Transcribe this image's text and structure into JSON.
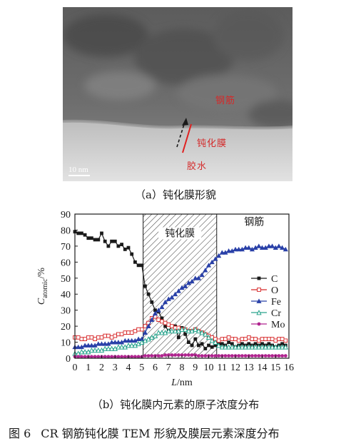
{
  "tem": {
    "labels": {
      "steel": "钢筋",
      "film": "钝化膜",
      "glue": "胶水"
    },
    "scale_bar": "10 nm"
  },
  "captions": {
    "a": "（a）钝化膜形貌",
    "b": "（b）钝化膜内元素的原子浓度分布",
    "figure_number": "图 6",
    "figure_title": "CR 钢筋钝化膜 TEM 形貌及膜层元素深度分布"
  },
  "chart_data": {
    "type": "line",
    "xlabel": "L/nm",
    "ylabel": "C_atomic/%",
    "xlim": [
      0,
      16
    ],
    "ylim": [
      0,
      90
    ],
    "xticks": [
      0,
      1,
      2,
      3,
      4,
      5,
      6,
      7,
      8,
      9,
      10,
      11,
      12,
      13,
      14,
      15,
      16
    ],
    "yticks": [
      0,
      10,
      20,
      30,
      40,
      50,
      60,
      70,
      80,
      90
    ],
    "region_labels": {
      "film": "钝化膜",
      "steel": "钢筋"
    },
    "shaded_region": [
      5.1,
      10.6
    ],
    "legend_position": "right",
    "colors": {
      "C": "#1a1a1a",
      "O": "#d62728",
      "Fe": "#2940a8",
      "Cr": "#2aa58e",
      "Mo": "#b0248f"
    },
    "x": [
      0,
      0.25,
      0.5,
      0.75,
      1,
      1.25,
      1.5,
      1.75,
      2,
      2.25,
      2.5,
      2.75,
      3,
      3.25,
      3.5,
      3.75,
      4,
      4.25,
      4.5,
      4.75,
      5,
      5.25,
      5.5,
      5.75,
      6,
      6.25,
      6.5,
      6.75,
      7,
      7.25,
      7.5,
      7.75,
      8,
      8.25,
      8.5,
      8.75,
      9,
      9.25,
      9.5,
      9.75,
      10,
      10.25,
      10.5,
      10.75,
      11,
      11.25,
      11.5,
      11.75,
      12,
      12.25,
      12.5,
      12.75,
      13,
      13.25,
      13.5,
      13.75,
      14,
      14.25,
      14.5,
      14.75,
      15,
      15.25,
      15.5,
      15.75
    ],
    "series": [
      {
        "name": "C",
        "marker": "square-filled",
        "values": [
          79,
          78,
          78,
          77,
          75,
          75,
          74,
          74,
          78,
          73,
          70,
          73,
          73,
          70,
          71,
          68,
          69,
          65,
          60,
          58,
          58,
          45,
          40,
          35,
          30,
          29,
          25,
          20,
          17,
          20,
          20,
          13,
          19,
          15,
          10,
          8,
          12,
          8,
          9,
          6,
          8,
          7,
          8,
          9,
          9,
          8,
          10,
          9,
          7,
          8,
          9,
          8,
          9,
          8,
          9,
          8,
          9,
          8,
          9,
          8,
          7,
          8,
          9,
          8
        ]
      },
      {
        "name": "O",
        "marker": "square-open",
        "values": [
          13,
          13,
          12,
          12,
          13,
          13,
          12,
          13,
          13,
          14,
          14,
          13,
          14,
          15,
          15,
          16,
          16,
          16,
          17,
          18,
          18,
          20,
          22,
          25,
          26,
          24,
          23,
          22,
          21,
          20,
          19,
          19,
          18,
          18,
          17,
          17,
          18,
          17,
          16,
          15,
          14,
          13,
          12,
          11,
          12,
          12,
          13,
          12,
          12,
          11,
          12,
          12,
          13,
          12,
          12,
          11,
          12,
          12,
          12,
          12,
          11,
          12,
          12,
          11
        ]
      },
      {
        "name": "Fe",
        "marker": "triangle-filled",
        "values": [
          7,
          7,
          7,
          8,
          8,
          8,
          8,
          9,
          9,
          9,
          9,
          10,
          10,
          10,
          10,
          11,
          11,
          11,
          11,
          12,
          12,
          16,
          20,
          24,
          28,
          30,
          32,
          35,
          37,
          38,
          40,
          42,
          44,
          45,
          47,
          48,
          50,
          50,
          52,
          55,
          58,
          60,
          62,
          64,
          66,
          66,
          67,
          67,
          68,
          68,
          68,
          69,
          69,
          68,
          69,
          70,
          69,
          69,
          70,
          70,
          69,
          70,
          69,
          68
        ]
      },
      {
        "name": "Cr",
        "marker": "triangle-open",
        "values": [
          3,
          3,
          4,
          4,
          4,
          5,
          5,
          5,
          5,
          6,
          6,
          6,
          6,
          7,
          7,
          7,
          8,
          8,
          8,
          9,
          10,
          11,
          12,
          13,
          14,
          16,
          16,
          16,
          17,
          17,
          17,
          17,
          18,
          18,
          17,
          17,
          18,
          17,
          16,
          15,
          13,
          11,
          10,
          8,
          7,
          7,
          7,
          7,
          7,
          7,
          7,
          7,
          7,
          7,
          7,
          7,
          7,
          7,
          7,
          7,
          7,
          7,
          7,
          7
        ]
      },
      {
        "name": "Mo",
        "marker": "circle-filled",
        "values": [
          1,
          1,
          1,
          1,
          1,
          1,
          1,
          1,
          1,
          1,
          1,
          1,
          1,
          1,
          1,
          1,
          1,
          1,
          1,
          1,
          1,
          1.5,
          1.5,
          1.5,
          1.5,
          1.5,
          1.5,
          2,
          2,
          2,
          2,
          2,
          2,
          2,
          2,
          2,
          2,
          1.5,
          1.5,
          1.5,
          1.5,
          1.5,
          1.5,
          1.5,
          1.5,
          1.5,
          1.5,
          1.5,
          1.5,
          1.5,
          1.5,
          1.5,
          1.5,
          1.5,
          1.5,
          1.5,
          1.5,
          1.5,
          1.5,
          1.5,
          1.5,
          1.5,
          1.5,
          1.5
        ]
      }
    ]
  }
}
